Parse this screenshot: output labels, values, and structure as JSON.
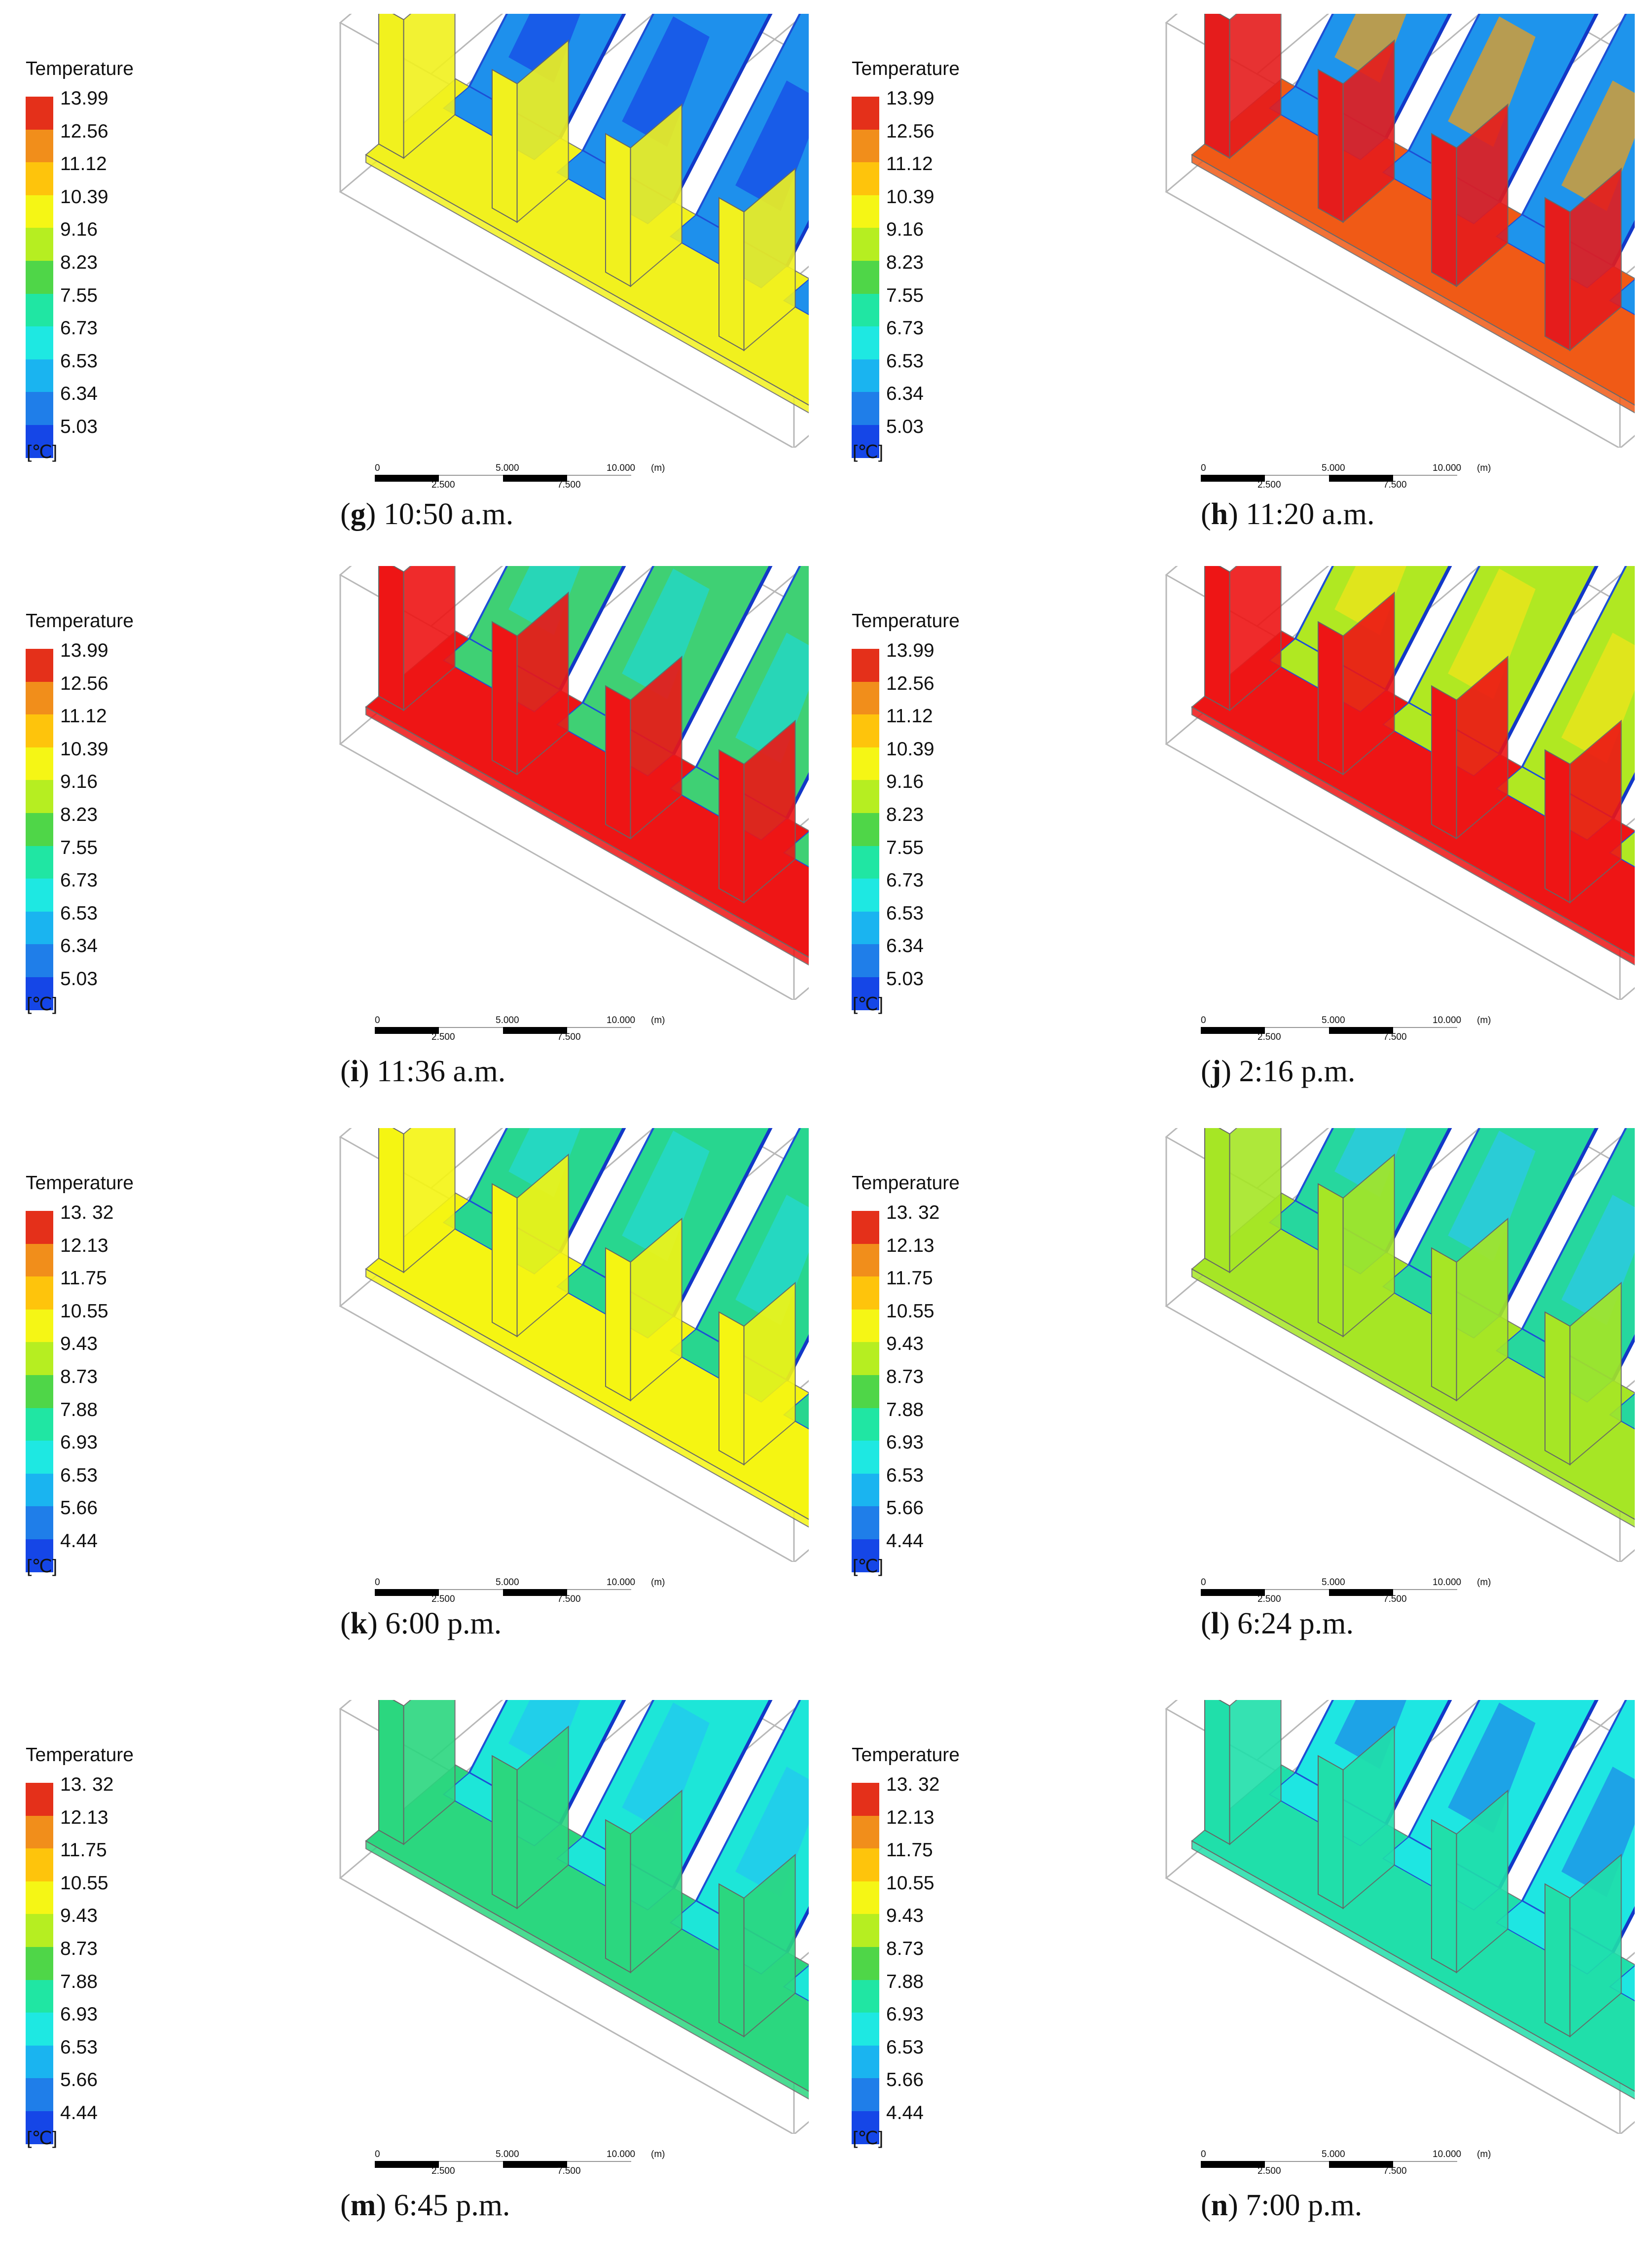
{
  "legend_title": "Temperature",
  "legend_unit": "[℃]",
  "legend_colors": [
    "#e4301a",
    "#f18e1b",
    "#fec40c",
    "#f5f615",
    "#b6ee21",
    "#4fd648",
    "#20e6a3",
    "#1ee8e2",
    "#1ab4f0",
    "#1f7ee9",
    "#1546e7"
  ],
  "legend_values_a": [
    "13.99",
    "12.56",
    "11.12",
    "10.39",
    "9.16",
    "8.23",
    "7.55",
    "6.73",
    "6.53",
    "6.34",
    "5.03"
  ],
  "legend_values_b": [
    "13. 32",
    "12.13",
    "11.75",
    "10.55",
    "9.43",
    "8.73",
    "7.88",
    "6.93",
    "6.53",
    "5.66",
    "4.44"
  ],
  "scale": {
    "l0": "0",
    "l2": "2.500",
    "l5": "5.000",
    "l7": "7.500",
    "l10": "10.000",
    "unit": "(m)"
  },
  "panels": [
    {
      "letter": "g",
      "time": "10:50 a.m.",
      "colors": {
        "floor": "#f1f11e",
        "wall": "#1e90ec",
        "partition": "#f1f11e",
        "accent": "#1546e7"
      }
    },
    {
      "letter": "h",
      "time": "11:20 a.m.",
      "colors": {
        "floor": "#f05a16",
        "wall": "#1e94ec",
        "partition": "#e51c1c",
        "accent": "#f8a010"
      }
    },
    {
      "letter": "i",
      "time": "11:36 a.m.",
      "colors": {
        "floor": "#ee1515",
        "wall": "#3fd074",
        "partition": "#ee1515",
        "accent": "#1fd8d4"
      }
    },
    {
      "letter": "j",
      "time": "2:16 p.m.",
      "colors": {
        "floor": "#ee1515",
        "wall": "#b0e822",
        "partition": "#ee1515",
        "accent": "#f5e41a"
      }
    },
    {
      "letter": "k",
      "time": "6:00 p.m.",
      "colors": {
        "floor": "#f5f512",
        "wall": "#28d68f",
        "partition": "#f5f512",
        "accent": "#24d8d6"
      }
    },
    {
      "letter": "l",
      "time": "6:24 p.m.",
      "colors": {
        "floor": "#a6e625",
        "wall": "#26d79e",
        "partition": "#a6e625",
        "accent": "#2cc8ee"
      }
    },
    {
      "letter": "m",
      "time": "6:45 p.m.",
      "colors": {
        "floor": "#2bd77f",
        "wall": "#1de6d8",
        "partition": "#2bd77f",
        "accent": "#24c4f2"
      }
    },
    {
      "letter": "n",
      "time": "7:00 p.m.",
      "colors": {
        "floor": "#20dfaa",
        "wall": "#1ee6e2",
        "partition": "#20dfaa",
        "accent": "#1c86ea"
      }
    }
  ]
}
